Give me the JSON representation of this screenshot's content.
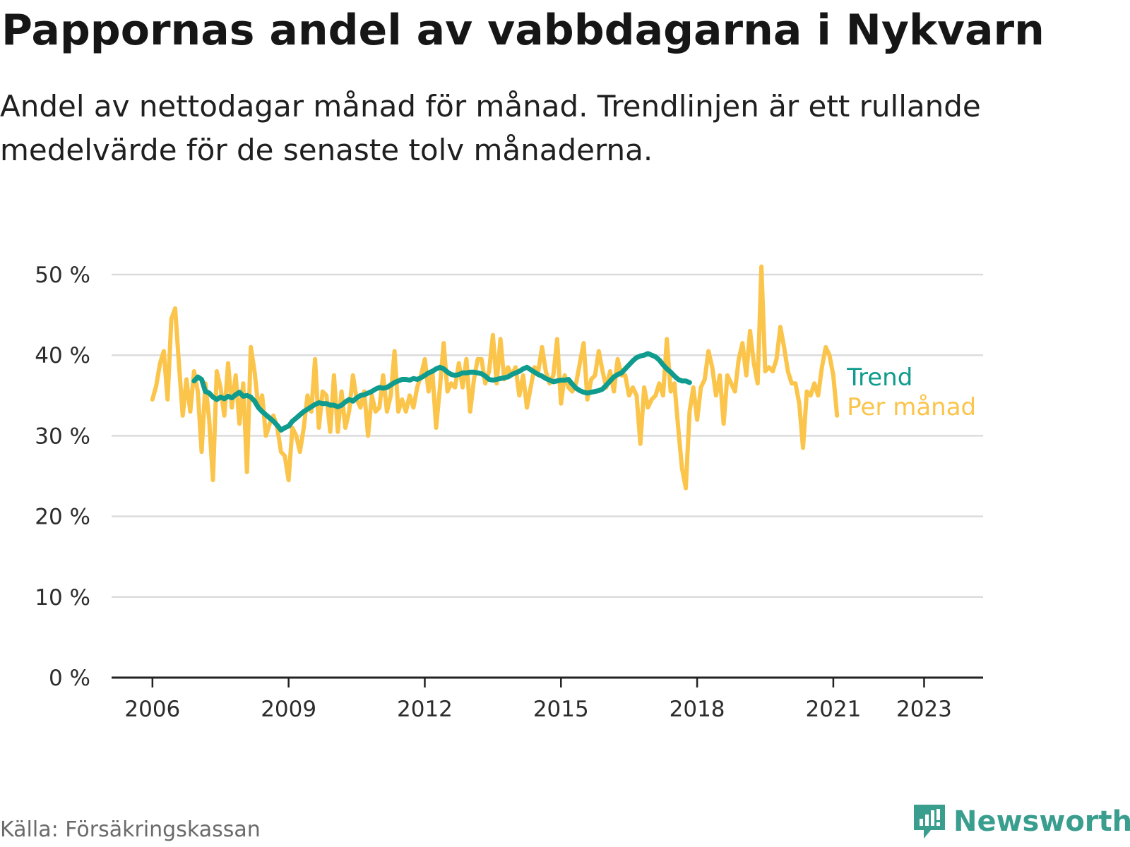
{
  "title": "Pappornas andel av vabbdagarna i Nykvarn",
  "subtitle": "Andel av nettodagar månad för månad. Trendlinjen är ett rullande medelvärde för de senaste tolv månaderna.",
  "source": "Källa: Försäkringskassan",
  "brand": {
    "name": "Newsworthy",
    "icon": "newsworthy-logo-icon",
    "color": "#3a9e8f"
  },
  "chart_data": {
    "type": "line",
    "xlabel": "",
    "ylabel": "",
    "xlim": [
      2005.1,
      2024.3
    ],
    "ylim": [
      0,
      50
    ],
    "y_ticks": [
      {
        "value": 0,
        "label": "0 %"
      },
      {
        "value": 10,
        "label": "10 %"
      },
      {
        "value": 20,
        "label": "20 %"
      },
      {
        "value": 30,
        "label": "30 %"
      },
      {
        "value": 40,
        "label": "40 %"
      },
      {
        "value": 50,
        "label": "50 %"
      }
    ],
    "x_ticks": [
      {
        "value": 2006,
        "label": "2006"
      },
      {
        "value": 2009,
        "label": "2009"
      },
      {
        "value": 2012,
        "label": "2012"
      },
      {
        "value": 2015,
        "label": "2015"
      },
      {
        "value": 2018,
        "label": "2018"
      },
      {
        "value": 2021,
        "label": "2021"
      },
      {
        "value": 2023,
        "label": "2023"
      }
    ],
    "grid": true,
    "legend": "right-end",
    "series": [
      {
        "name": "Per månad",
        "color": "#fbc44a",
        "start": 2006.0,
        "step": 0.08333,
        "values": [
          34.5,
          36.2,
          39.0,
          40.5,
          34.5,
          44.5,
          45.8,
          39.0,
          32.5,
          37.0,
          33.0,
          38.0,
          35.5,
          28.0,
          36.5,
          32.0,
          24.5,
          38.0,
          36.0,
          32.5,
          39.0,
          33.5,
          37.5,
          31.5,
          36.5,
          25.5,
          41.0,
          38.0,
          33.5,
          35.0,
          30.0,
          31.5,
          32.5,
          31.0,
          28.0,
          27.5,
          24.5,
          31.0,
          30.0,
          28.0,
          31.0,
          35.0,
          33.0,
          39.5,
          31.0,
          35.5,
          35.0,
          30.5,
          37.5,
          30.5,
          35.5,
          31.0,
          33.0,
          37.5,
          34.5,
          33.5,
          35.5,
          30.0,
          35.0,
          33.0,
          33.5,
          37.5,
          33.0,
          35.0,
          40.5,
          33.0,
          34.5,
          33.0,
          35.0,
          33.5,
          36.0,
          37.5,
          39.5,
          35.5,
          38.0,
          31.0,
          36.0,
          41.5,
          35.5,
          36.5,
          36.0,
          39.0,
          36.0,
          39.5,
          33.0,
          37.0,
          39.5,
          39.5,
          36.5,
          38.0,
          42.5,
          36.5,
          42.0,
          37.0,
          38.5,
          37.5,
          38.5,
          35.0,
          37.5,
          33.5,
          36.0,
          38.5,
          38.0,
          41.0,
          38.0,
          36.5,
          37.5,
          42.0,
          34.0,
          37.5,
          36.0,
          35.5,
          36.5,
          39.0,
          41.5,
          34.5,
          37.0,
          37.5,
          40.5,
          38.0,
          36.0,
          38.0,
          35.5,
          39.5,
          37.5,
          37.5,
          35.0,
          36.0,
          35.0,
          29.0,
          36.0,
          33.5,
          34.5,
          35.0,
          36.5,
          35.0,
          42.0,
          35.5,
          36.5,
          31.0,
          26.0,
          23.5,
          33.0,
          36.0,
          32.0,
          36.0,
          37.0,
          40.5,
          38.5,
          35.0,
          37.5,
          31.5,
          37.5,
          36.5,
          35.5,
          39.5,
          41.5,
          37.5,
          43.0,
          39.0,
          36.5,
          51.0,
          38.0,
          38.5,
          38.0,
          39.5,
          43.5,
          41.0,
          38.0,
          36.5,
          36.5,
          34.0,
          28.5,
          35.5,
          35.0,
          36.5,
          35.0,
          38.5,
          41.0,
          40.0,
          37.5,
          32.5
        ]
      },
      {
        "name": "Trend",
        "color": "#0f9b8e",
        "start": 2006.917,
        "step": 0.08333,
        "values": [
          36.8,
          37.3,
          37.0,
          35.5,
          35.3,
          34.8,
          34.5,
          34.8,
          34.6,
          34.9,
          34.7,
          35.1,
          35.4,
          34.9,
          35.0,
          34.8,
          34.3,
          33.5,
          33.0,
          32.6,
          32.2,
          31.8,
          31.3,
          30.7,
          31.0,
          31.2,
          31.8,
          32.2,
          32.6,
          33.0,
          33.3,
          33.6,
          33.9,
          34.1,
          34.0,
          34.0,
          33.8,
          33.8,
          33.6,
          33.8,
          34.2,
          34.5,
          34.3,
          34.7,
          35.0,
          35.1,
          35.3,
          35.5,
          35.8,
          36.0,
          35.9,
          36.0,
          36.3,
          36.6,
          36.8,
          37.0,
          37.0,
          36.9,
          37.1,
          37.0,
          37.2,
          37.5,
          37.8,
          38.0,
          38.3,
          38.5,
          38.3,
          37.9,
          37.6,
          37.5,
          37.6,
          37.8,
          37.8,
          37.9,
          37.9,
          37.8,
          37.7,
          37.4,
          37.0,
          36.9,
          37.0,
          37.1,
          37.2,
          37.3,
          37.6,
          37.8,
          38.0,
          38.3,
          38.5,
          38.2,
          37.9,
          37.6,
          37.4,
          37.1,
          36.9,
          36.7,
          36.8,
          36.9,
          36.9,
          37.0,
          36.4,
          35.9,
          35.6,
          35.4,
          35.3,
          35.4,
          35.5,
          35.6,
          35.8,
          36.3,
          36.8,
          37.3,
          37.6,
          37.8,
          38.3,
          38.8,
          39.3,
          39.7,
          39.9,
          40.0,
          40.2,
          40.0,
          39.8,
          39.4,
          38.8,
          38.3,
          37.9,
          37.4,
          37.0,
          36.8,
          36.8,
          36.6
        ]
      }
    ]
  }
}
